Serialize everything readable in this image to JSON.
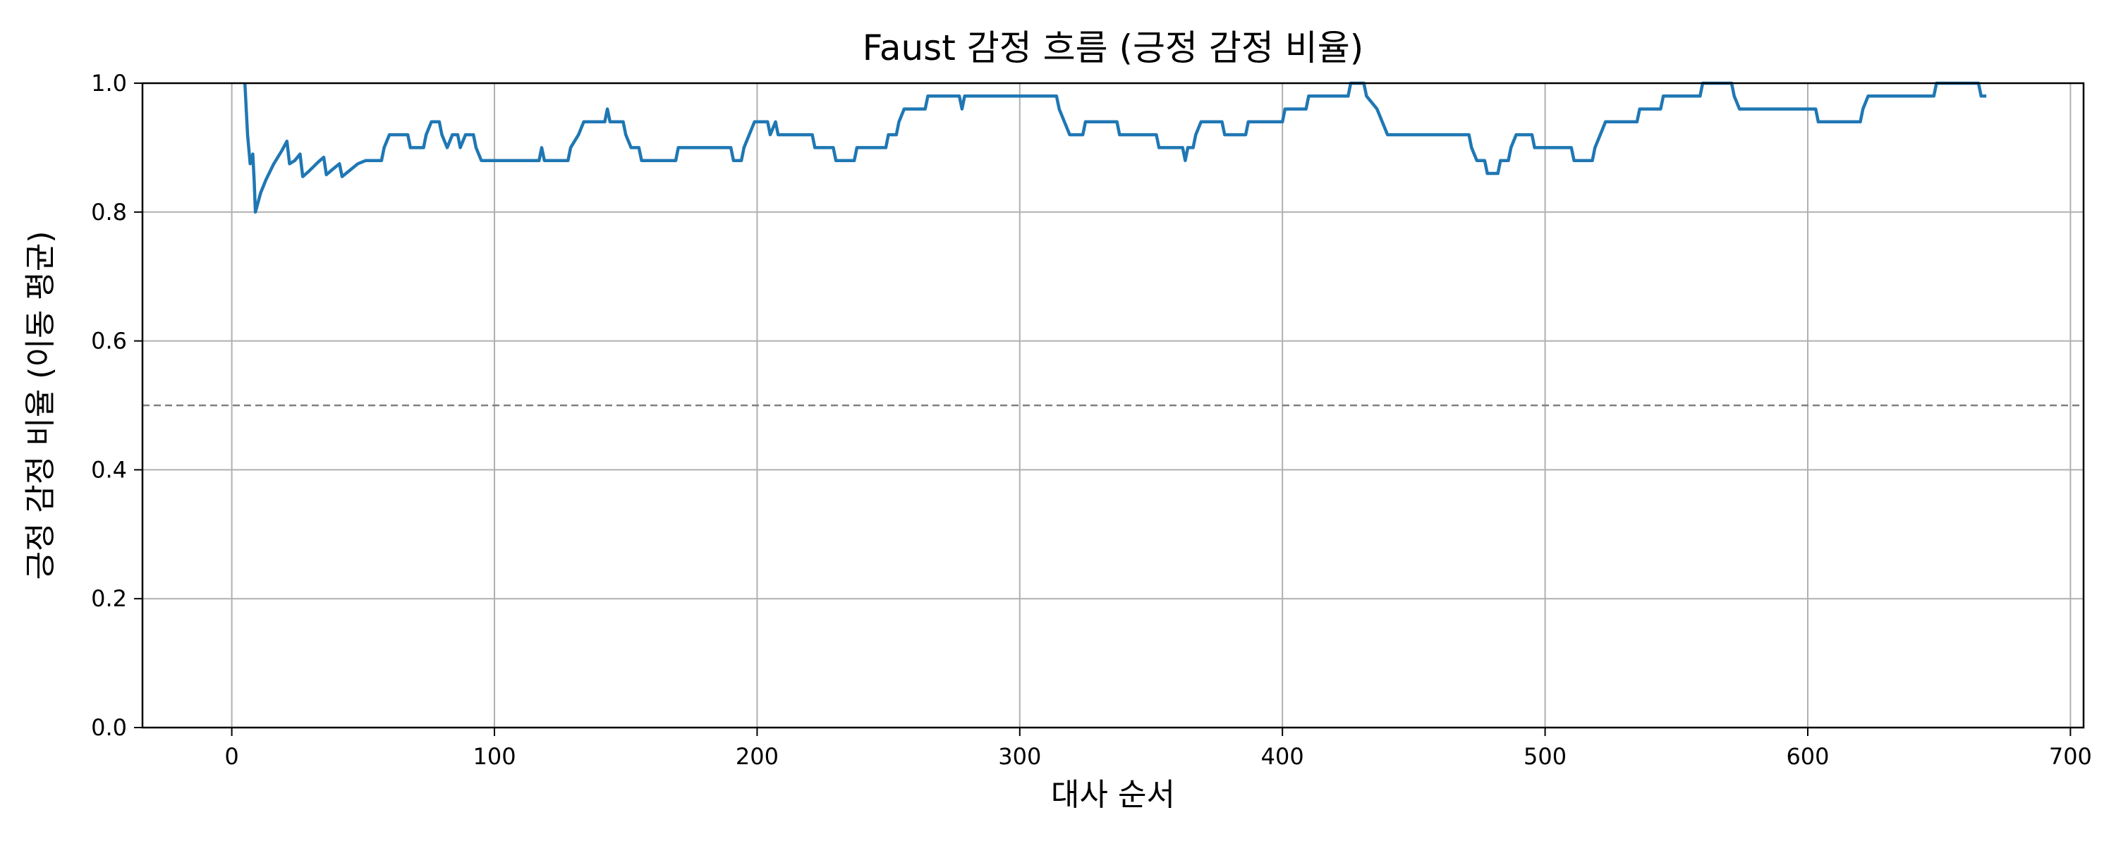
{
  "chart_data": {
    "type": "line",
    "title": "Faust 감정 흐름 (긍정 감정 비율)",
    "xlabel": "대사 순서",
    "ylabel": "긍정 감정 비율 (이동 평균)",
    "xlim": [
      -34,
      705
    ],
    "ylim": [
      0,
      1
    ],
    "x_ticks": [
      0,
      100,
      200,
      300,
      400,
      500,
      600,
      700
    ],
    "y_ticks": [
      0.0,
      0.2,
      0.4,
      0.6,
      0.8,
      1.0
    ],
    "x_tick_labels": [
      "0",
      "100",
      "200",
      "300",
      "400",
      "500",
      "600",
      "700"
    ],
    "y_tick_labels": [
      "0.0",
      "0.2",
      "0.4",
      "0.6",
      "0.8",
      "1.0"
    ],
    "grid": true,
    "reference_line": {
      "y": 0.5,
      "style": "dashed",
      "color": "#808080"
    },
    "series": [
      {
        "color": "#1f77b4",
        "points": [
          [
            5,
            1.0
          ],
          [
            6,
            0.92
          ],
          [
            7,
            0.875
          ],
          [
            8,
            0.89
          ],
          [
            8.5,
            0.85
          ],
          [
            9,
            0.8
          ],
          [
            11,
            0.83
          ],
          [
            13,
            0.85
          ],
          [
            16,
            0.875
          ],
          [
            19,
            0.895
          ],
          [
            21,
            0.91
          ],
          [
            22,
            0.875
          ],
          [
            24,
            0.88
          ],
          [
            26,
            0.89
          ],
          [
            27,
            0.855
          ],
          [
            29,
            0.862
          ],
          [
            31,
            0.87
          ],
          [
            33,
            0.878
          ],
          [
            35,
            0.885
          ],
          [
            36,
            0.858
          ],
          [
            38,
            0.865
          ],
          [
            41,
            0.875
          ],
          [
            42,
            0.855
          ],
          [
            45,
            0.865
          ],
          [
            48,
            0.875
          ],
          [
            51,
            0.88
          ],
          [
            57,
            0.88
          ],
          [
            58,
            0.9
          ],
          [
            60,
            0.92
          ],
          [
            67,
            0.92
          ],
          [
            68,
            0.9
          ],
          [
            73,
            0.9
          ],
          [
            74,
            0.92
          ],
          [
            76,
            0.94
          ],
          [
            79,
            0.94
          ],
          [
            80,
            0.92
          ],
          [
            82,
            0.9
          ],
          [
            84,
            0.92
          ],
          [
            86,
            0.92
          ],
          [
            87,
            0.9
          ],
          [
            89,
            0.92
          ],
          [
            92,
            0.92
          ],
          [
            93,
            0.9
          ],
          [
            95,
            0.88
          ],
          [
            117,
            0.88
          ],
          [
            118,
            0.9
          ],
          [
            119,
            0.88
          ],
          [
            128,
            0.88
          ],
          [
            129,
            0.9
          ],
          [
            132,
            0.92
          ],
          [
            134,
            0.94
          ],
          [
            142,
            0.94
          ],
          [
            143,
            0.96
          ],
          [
            144,
            0.94
          ],
          [
            149,
            0.94
          ],
          [
            150,
            0.92
          ],
          [
            152,
            0.9
          ],
          [
            155,
            0.9
          ],
          [
            156,
            0.88
          ],
          [
            169,
            0.88
          ],
          [
            170,
            0.9
          ],
          [
            190,
            0.9
          ],
          [
            191,
            0.88
          ],
          [
            194,
            0.88
          ],
          [
            195,
            0.9
          ],
          [
            197,
            0.92
          ],
          [
            199,
            0.94
          ],
          [
            204,
            0.94
          ],
          [
            205,
            0.92
          ],
          [
            207,
            0.94
          ],
          [
            208,
            0.92
          ],
          [
            221,
            0.92
          ],
          [
            222,
            0.9
          ],
          [
            229,
            0.9
          ],
          [
            230,
            0.88
          ],
          [
            237,
            0.88
          ],
          [
            238,
            0.9
          ],
          [
            249,
            0.9
          ],
          [
            250,
            0.92
          ],
          [
            253,
            0.92
          ],
          [
            254,
            0.94
          ],
          [
            256,
            0.96
          ],
          [
            264,
            0.96
          ],
          [
            265,
            0.98
          ],
          [
            277,
            0.98
          ],
          [
            278,
            0.96
          ],
          [
            279,
            0.98
          ],
          [
            314,
            0.98
          ],
          [
            315,
            0.96
          ],
          [
            317,
            0.94
          ],
          [
            319,
            0.92
          ],
          [
            324,
            0.92
          ],
          [
            325,
            0.94
          ],
          [
            337,
            0.94
          ],
          [
            338,
            0.92
          ],
          [
            352,
            0.92
          ],
          [
            353,
            0.9
          ],
          [
            362,
            0.9
          ],
          [
            363,
            0.88
          ],
          [
            364,
            0.9
          ],
          [
            366,
            0.9
          ],
          [
            367,
            0.92
          ],
          [
            369,
            0.94
          ],
          [
            377,
            0.94
          ],
          [
            378,
            0.92
          ],
          [
            386,
            0.92
          ],
          [
            387,
            0.94
          ],
          [
            400,
            0.94
          ],
          [
            401,
            0.96
          ],
          [
            409,
            0.96
          ],
          [
            410,
            0.98
          ],
          [
            425,
            0.98
          ],
          [
            426,
            1.0
          ],
          [
            431,
            1.0
          ],
          [
            432,
            0.98
          ],
          [
            436,
            0.96
          ],
          [
            438,
            0.94
          ],
          [
            440,
            0.92
          ],
          [
            471,
            0.92
          ],
          [
            472,
            0.9
          ],
          [
            474,
            0.88
          ],
          [
            477,
            0.88
          ],
          [
            478,
            0.86
          ],
          [
            482,
            0.86
          ],
          [
            483,
            0.88
          ],
          [
            486,
            0.88
          ],
          [
            487,
            0.9
          ],
          [
            489,
            0.92
          ],
          [
            495,
            0.92
          ],
          [
            496,
            0.9
          ],
          [
            510,
            0.9
          ],
          [
            511,
            0.88
          ],
          [
            518,
            0.88
          ],
          [
            519,
            0.9
          ],
          [
            521,
            0.92
          ],
          [
            523,
            0.94
          ],
          [
            535,
            0.94
          ],
          [
            536,
            0.96
          ],
          [
            544,
            0.96
          ],
          [
            545,
            0.98
          ],
          [
            559,
            0.98
          ],
          [
            560,
            1.0
          ],
          [
            571,
            1.0
          ],
          [
            572,
            0.98
          ],
          [
            574,
            0.96
          ],
          [
            603,
            0.96
          ],
          [
            604,
            0.94
          ],
          [
            620,
            0.94
          ],
          [
            621,
            0.96
          ],
          [
            623,
            0.98
          ],
          [
            648,
            0.98
          ],
          [
            649,
            1.0
          ],
          [
            665,
            1.0
          ],
          [
            666,
            0.98
          ],
          [
            668,
            0.98
          ]
        ]
      }
    ]
  }
}
